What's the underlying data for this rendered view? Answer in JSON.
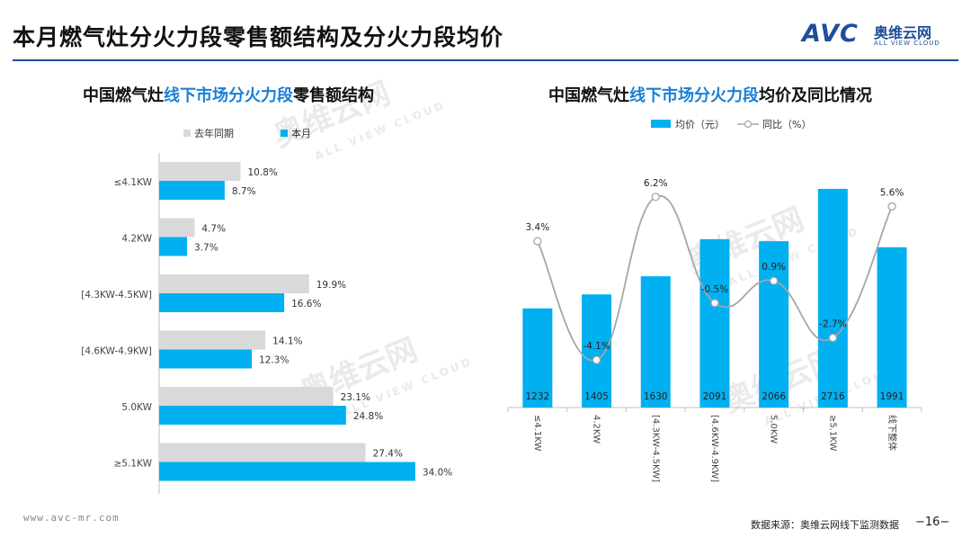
{
  "page": {
    "title": "本月燃气灶分火力段零售额结构及分火力段均价",
    "logo_mark": "AVC",
    "logo_cn": "奥维云网",
    "logo_en": "ALL VIEW CLOUD",
    "footer_url": "www.avc-mr.com",
    "footer_source": "数据来源：奥维云网线下监测数据",
    "page_number": "−16−",
    "watermark_cn": "奥维云网",
    "watermark_en": "ALL VIEW CLOUD"
  },
  "left_chart": {
    "title_prefix": "中国燃气灶",
    "title_highlight": "线下市场分火力段",
    "title_suffix": "零售额结构"
  },
  "right_chart": {
    "title_prefix": "中国燃气灶",
    "title_highlight": "线下市场分火力段",
    "title_suffix": "均价及同比情况"
  },
  "colors": {
    "blue": "#00b0f0",
    "gray": "#d9d9d9",
    "line": "#a6a6a6",
    "title_blue": "#1a7fd6",
    "rule": "#1f4e9a"
  },
  "chart_data": [
    {
      "type": "bar",
      "orientation": "horizontal",
      "title": "中国燃气灶线下市场分火力段零售额结构",
      "categories": [
        "≤4.1KW",
        "4.2KW",
        "[4.3KW-4.5KW]",
        "[4.6KW-4.9KW]",
        "5.0KW",
        "≥5.1KW"
      ],
      "series": [
        {
          "name": "去年同期",
          "values": [
            10.8,
            4.7,
            19.9,
            14.1,
            23.1,
            27.4
          ],
          "labels": [
            "10.8%",
            "4.7%",
            "19.9%",
            "14.1%",
            "23.1%",
            "27.4%"
          ]
        },
        {
          "name": "本月",
          "values": [
            8.7,
            3.7,
            16.6,
            12.3,
            24.8,
            34.0
          ],
          "labels": [
            "8.7%",
            "3.7%",
            "16.6%",
            "12.3%",
            "24.8%",
            "34.0%"
          ]
        }
      ],
      "xlim": [
        0,
        40
      ],
      "unit": "%"
    },
    {
      "type": "bar+line",
      "title": "中国燃气灶线下市场分火力段均价及同比情况",
      "categories": [
        "≤4.1KW",
        "4.2KW",
        "[4.3KW-4.5KW]",
        "[4.6KW-4.9KW]",
        "5.0KW",
        "≥5.1KW",
        "线下整体"
      ],
      "bars": {
        "name": "均价（元）",
        "values": [
          1232,
          1405,
          1630,
          2091,
          2066,
          2716,
          1991
        ],
        "labels": [
          "1232",
          "1405",
          "1630",
          "2091",
          "2066",
          "2716",
          "1991"
        ],
        "ylim": [
          0,
          3000
        ]
      },
      "line": {
        "name": "同比（%）",
        "values": [
          3.4,
          -4.1,
          6.2,
          -0.5,
          0.9,
          -2.7,
          5.6
        ],
        "labels": [
          "3.4%",
          "-4.1%",
          "6.2%",
          "-0.5%",
          "0.9%",
          "-2.7%",
          "5.6%"
        ],
        "ylim": [
          -6,
          8
        ]
      }
    }
  ]
}
